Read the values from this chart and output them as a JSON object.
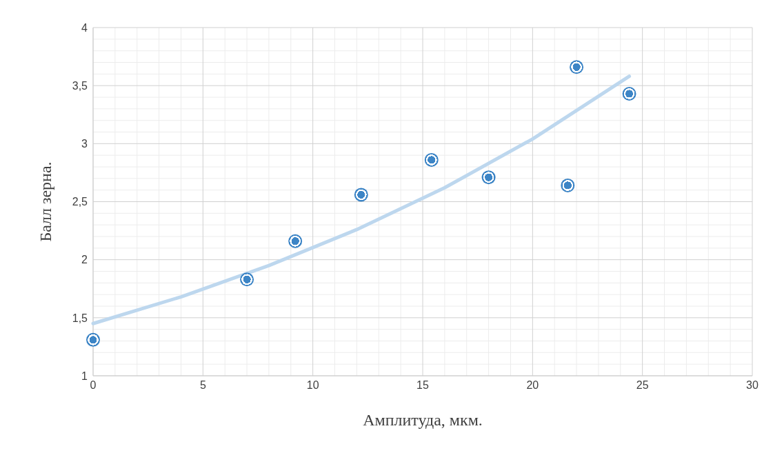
{
  "chart_data": {
    "type": "scatter",
    "xlabel": "Амплитуда, мкм.",
    "ylabel": "Балл зерна.",
    "series": [
      {
        "color": "#3d85c6",
        "x": [
          0,
          7,
          9.2,
          12.2,
          15.4,
          18,
          21.6,
          22,
          24.4
        ],
        "values": [
          1.31,
          1.83,
          2.16,
          2.56,
          2.86,
          2.71,
          2.64,
          3.66,
          3.43
        ]
      },
      {
        "type": "line",
        "marker": "none",
        "color": "#bdd7ee",
        "x": [
          0,
          4,
          8,
          12,
          16,
          20,
          24.4
        ],
        "values": [
          1.45,
          1.68,
          1.95,
          2.26,
          2.62,
          3.04,
          3.58
        ]
      }
    ],
    "xlim": [
      0,
      30
    ],
    "xticks": [
      0,
      5,
      10,
      15,
      20,
      25,
      30
    ],
    "ylim": [
      1,
      4
    ],
    "yticks": [
      1,
      {
        "value": 1.5,
        "label": "1,5"
      },
      2,
      {
        "value": 2.5,
        "label": "2,5"
      },
      3,
      {
        "value": 3.5,
        "label": "3,5"
      },
      4
    ],
    "grid": true,
    "marker": "circle",
    "legend": false
  }
}
